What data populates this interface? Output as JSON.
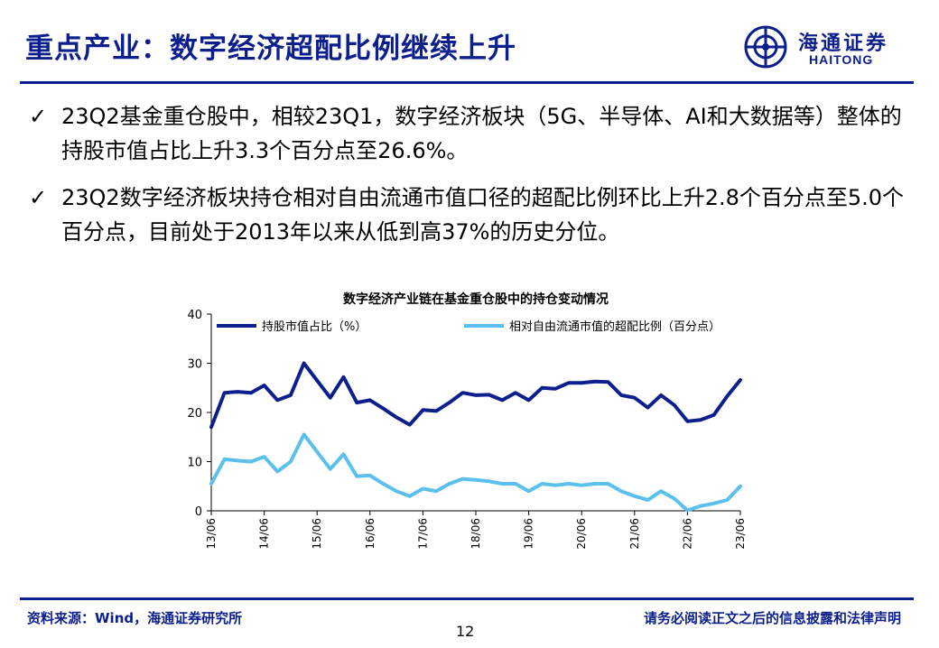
{
  "slide": {
    "title": "重点产业：数字经济超配比例继续上升",
    "logo_cn": "海通证券",
    "logo_en": "HAITONG",
    "brand_color": "#0d1f8c",
    "bullets": [
      "23Q2基金重仓股中，相较23Q1，数字经济板块（5G、半导体、AI和大数据等）整体的持股市值占比上升3.3个百分点至26.6%。",
      "23Q2数字经济板块持仓相对自由流通市值口径的超配比例环比上升2.8个百分点至5.0个百分点，目前处于2013年以来从低到高37%的历史分位。"
    ],
    "check_glyph": "✓",
    "source": "资料来源：Wind，海通证券研究所",
    "disclaimer": "请务必阅读正文之后的信息披露和法律声明",
    "page_number": "12"
  },
  "chart_data": {
    "type": "line",
    "title": "数字经济产业链在基金重仓股中的持仓变动情况",
    "xlabel": "",
    "ylabel": "",
    "ylim": [
      0,
      40
    ],
    "yticks": [
      "0",
      "10",
      "20",
      "30",
      "40"
    ],
    "ytick_values": [
      0,
      10,
      20,
      30,
      40
    ],
    "grid": false,
    "legend_position": "top",
    "x_tick_labels": [
      "13/06",
      "14/06",
      "15/06",
      "16/06",
      "17/06",
      "18/06",
      "19/06",
      "20/06",
      "21/06",
      "22/06",
      "23/06"
    ],
    "x_tick_index": [
      0,
      4,
      8,
      12,
      16,
      20,
      24,
      28,
      32,
      36,
      40
    ],
    "x": [
      "13Q2",
      "13Q3",
      "13Q4",
      "14Q1",
      "14Q2",
      "14Q3",
      "14Q4",
      "15Q1",
      "15Q2",
      "15Q3",
      "15Q4",
      "16Q1",
      "16Q2",
      "16Q3",
      "16Q4",
      "17Q1",
      "17Q2",
      "17Q3",
      "17Q4",
      "18Q1",
      "18Q2",
      "18Q3",
      "18Q4",
      "19Q1",
      "19Q2",
      "19Q3",
      "19Q4",
      "20Q1",
      "20Q2",
      "20Q3",
      "20Q4",
      "21Q1",
      "21Q2",
      "21Q3",
      "21Q4",
      "22Q1",
      "22Q2",
      "22Q3",
      "22Q4",
      "23Q1",
      "23Q2"
    ],
    "series": [
      {
        "name": "持股市值占比（%）",
        "color": "#0d1f8c",
        "values": [
          17.0,
          24.0,
          24.2,
          24.0,
          25.5,
          22.5,
          23.5,
          30.0,
          26.5,
          23.0,
          27.2,
          22.0,
          22.5,
          20.8,
          19.0,
          17.5,
          20.5,
          20.3,
          22.0,
          24.0,
          23.5,
          23.6,
          22.5,
          24.0,
          22.5,
          25.0,
          24.8,
          26.0,
          26.0,
          26.3,
          26.2,
          23.5,
          23.0,
          21.0,
          23.5,
          21.5,
          18.2,
          18.5,
          19.5,
          23.3,
          26.6
        ]
      },
      {
        "name": "相对自由流通市值的超配比例（百分点）",
        "color": "#5bc0eb",
        "values": [
          5.5,
          10.5,
          10.2,
          10.0,
          11.0,
          8.0,
          10.0,
          15.5,
          12.0,
          8.5,
          11.5,
          7.0,
          7.2,
          5.5,
          4.0,
          3.0,
          4.5,
          4.0,
          5.5,
          6.5,
          6.3,
          6.0,
          5.5,
          5.5,
          4.0,
          5.5,
          5.2,
          5.5,
          5.2,
          5.5,
          5.5,
          4.0,
          3.0,
          2.2,
          4.0,
          2.5,
          0.1,
          1.0,
          1.5,
          2.2,
          5.0
        ]
      }
    ]
  }
}
